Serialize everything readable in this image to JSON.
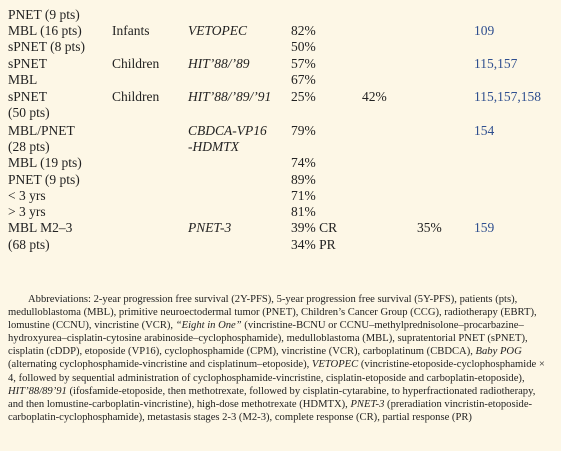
{
  "table": {
    "rows": [
      [
        "PNET (9 pts)",
        null,
        null,
        null,
        null,
        null,
        null
      ],
      [
        "MBL (16 pts)",
        "Infants",
        "VETOPEC",
        "82%",
        null,
        null,
        "109"
      ],
      [
        "sPNET (8 pts)",
        null,
        null,
        "50%",
        null,
        null,
        null
      ],
      [
        "sPNET",
        "Children",
        "HIT’88/’89",
        "57%",
        null,
        null,
        "115,157"
      ],
      [
        "MBL",
        null,
        null,
        "67%",
        null,
        null,
        null
      ],
      [
        "sPNET",
        "Children",
        "HIT’88/’89/’91",
        "25%",
        "42%",
        null,
        "115,157,158"
      ],
      [
        "(50 pts)",
        null,
        null,
        null,
        null,
        null,
        null
      ],
      [
        "MBL/PNET",
        null,
        "CBDCA-VP16",
        "79%",
        null,
        null,
        "154"
      ],
      [
        "(28 pts)",
        null,
        "-HDMTX",
        null,
        null,
        null,
        null
      ],
      [
        "MBL (19 pts)",
        null,
        null,
        "74%",
        null,
        null,
        null
      ],
      [
        "PNET (9 pts)",
        null,
        null,
        "89%",
        null,
        null,
        null
      ],
      [
        "< 3 yrs",
        null,
        null,
        "71%",
        null,
        null,
        null
      ],
      [
        "> 3 yrs",
        null,
        null,
        "81%",
        null,
        null,
        null
      ],
      [
        "MBL M2–3",
        null,
        "PNET-3",
        "39% CR",
        null,
        "35%",
        "159"
      ],
      [
        "(68 pts)",
        null,
        null,
        "34% PR",
        null,
        null,
        null
      ]
    ]
  },
  "abbreviations": [
    {
      "text": "Abbreviations: 2-year progression free survival (2Y-PFS), 5-year progression free survival (5Y-PFS), patients (pts), medulloblastoma (MBL), primitive neuroectodermal tumor (PNET), Children’s Cancer Group (CCG), radiotherapy (EBRT), lomustine (CCNU), vincristine (VCR), ",
      "italic": false
    },
    {
      "text": "“Eight in One”",
      "italic": true
    },
    {
      "text": " (vincristine-BCNU or CCNU–methylprednisolone–procarbazine–hydroxyurea–cisplatin-cytosine arabinoside–cyclophosphamide), medulloblastoma (MBL), supratentorial PNET (sPNET), cisplatin (cDDP), etoposide (VP16), cyclophosphamide (CPM), vincristine (VCR), carboplatinum (CBDCA), ",
      "italic": false
    },
    {
      "text": "Baby POG",
      "italic": true
    },
    {
      "text": " (alternating cyclophosphamide-vincristine and cisplatinum–etoposide), ",
      "italic": false
    },
    {
      "text": "VETOPEC",
      "italic": true
    },
    {
      "text": " (vincristine-etoposide-cyclophosphamide × 4, followed by sequential administration of cyclophosphamide-vincristine, cisplatin-etoposide and carboplatin-etoposide), ",
      "italic": false
    },
    {
      "text": "HIT’88/89’91",
      "italic": true
    },
    {
      "text": " (ifosfamide-etoposide, then methotrexate, followed by cisplatin-cytarabine, to hyperfractionated radiotherapy, and then lomustine-carboplatin-vincristine), high-dose methotrexate (HDMTX), ",
      "italic": false
    },
    {
      "text": "PNET-3",
      "italic": true
    },
    {
      "text": " (preradiation vincristin-etoposide-carboplatin-cyclophosphamide), metastasis stages 2-3 (M2-3), complete response (CR), partial response (PR)",
      "italic": false
    }
  ]
}
